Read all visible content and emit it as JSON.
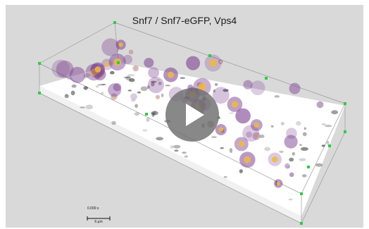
{
  "video": {
    "title": "Snf7 / Snf7-eGFP, Vps4",
    "timestamp": "0.000 s",
    "scale_bar_label": "6 µm",
    "controls": {
      "play_icon": "play-icon"
    }
  },
  "colors": {
    "background": "#d9d9d9",
    "box_edge": "#9a9a9a",
    "corner_marker": "#2ecc40",
    "slab": "#ffffff",
    "signal_cool": "#7b3f8f",
    "signal_warm": "#f0b840",
    "shadow": "#222222"
  }
}
